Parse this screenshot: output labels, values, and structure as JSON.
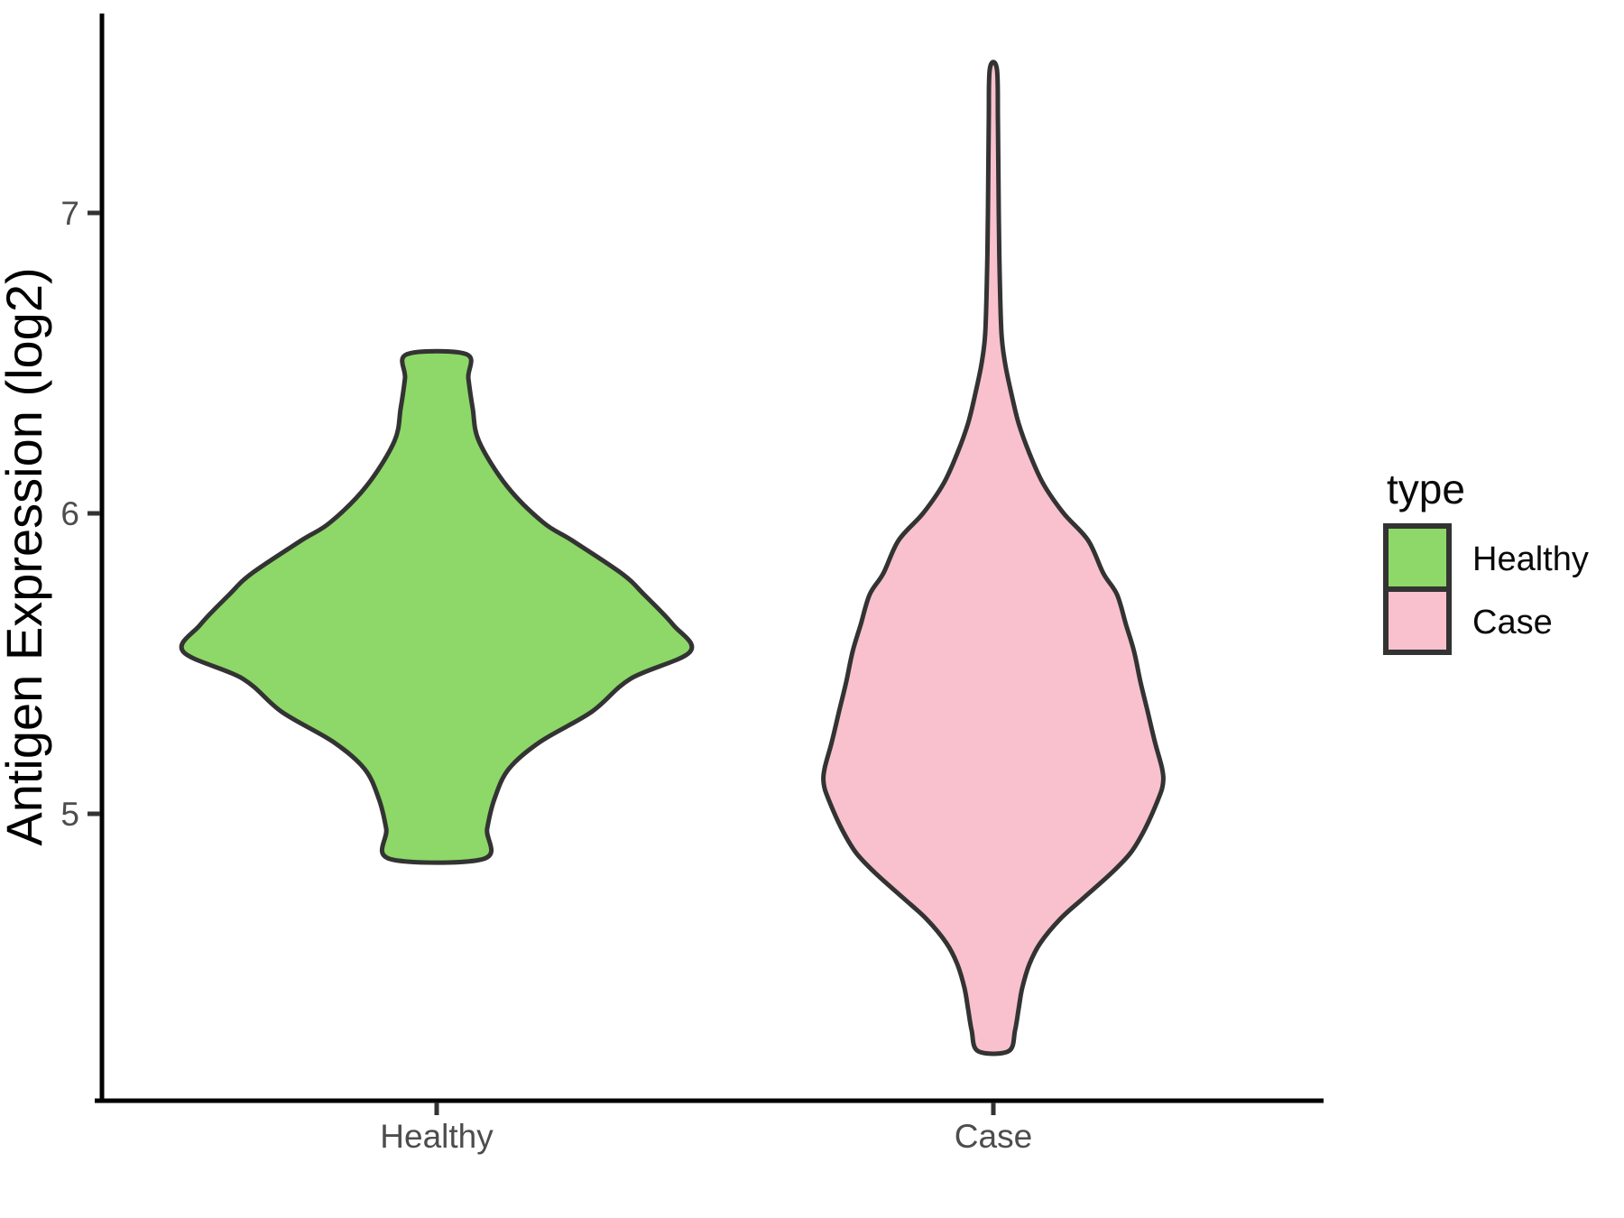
{
  "chart_data": {
    "type": "violin",
    "title": "",
    "xlabel": "",
    "ylabel": "Antigen Expression (log2)",
    "categories": [
      "Healthy",
      "Case"
    ],
    "ytick_values": [
      7,
      6,
      5
    ],
    "ytick_labels": [
      "7",
      "6",
      "5"
    ],
    "ylim": [
      4.045,
      7.664
    ],
    "grid": "off",
    "background": "#ffffff",
    "axis_color": "#000000",
    "tick_color": "#333333",
    "outline_color": "#333333",
    "legend": {
      "title": "type",
      "position": "right",
      "entries": [
        {
          "label": "Healthy",
          "color": "#8dd868"
        },
        {
          "label": "Case",
          "color": "#f8c1cd"
        }
      ]
    },
    "series": [
      {
        "name": "Healthy",
        "fill": "#8dd868",
        "outline": "#333333",
        "top_value": 6.53,
        "bottom_value": 4.85,
        "widest_at_value": 5.54,
        "profile": [
          [
            6.53,
            0.117
          ],
          [
            6.45,
            0.125
          ],
          [
            6.35,
            0.142
          ],
          [
            6.24,
            0.167
          ],
          [
            6.09,
            0.278
          ],
          [
            5.97,
            0.42
          ],
          [
            5.91,
            0.534
          ],
          [
            5.8,
            0.73
          ],
          [
            5.73,
            0.818
          ],
          [
            5.63,
            0.932
          ],
          [
            5.54,
            1.0
          ],
          [
            5.45,
            0.765
          ],
          [
            5.34,
            0.612
          ],
          [
            5.24,
            0.409
          ],
          [
            5.15,
            0.285
          ],
          [
            5.05,
            0.228
          ],
          [
            4.95,
            0.199
          ],
          [
            4.85,
            0.185
          ]
        ]
      },
      {
        "name": "Case",
        "fill": "#f8c1cd",
        "outline": "#333333",
        "top_value": 7.48,
        "bottom_value": 4.21,
        "widest_at_value": 5.1,
        "profile": [
          [
            7.48,
            0.021
          ],
          [
            7.3,
            0.027
          ],
          [
            7.0,
            0.032
          ],
          [
            6.8,
            0.037
          ],
          [
            6.6,
            0.048
          ],
          [
            6.5,
            0.069
          ],
          [
            6.4,
            0.106
          ],
          [
            6.3,
            0.149
          ],
          [
            6.2,
            0.213
          ],
          [
            6.1,
            0.293
          ],
          [
            6.0,
            0.415
          ],
          [
            5.91,
            0.559
          ],
          [
            5.8,
            0.649
          ],
          [
            5.73,
            0.729
          ],
          [
            5.63,
            0.782
          ],
          [
            5.54,
            0.83
          ],
          [
            5.44,
            0.867
          ],
          [
            5.34,
            0.91
          ],
          [
            5.24,
            0.952
          ],
          [
            5.15,
            0.995
          ],
          [
            5.1,
            1.0
          ],
          [
            5.05,
            0.973
          ],
          [
            4.95,
            0.894
          ],
          [
            4.87,
            0.809
          ],
          [
            4.8,
            0.691
          ],
          [
            4.72,
            0.532
          ],
          [
            4.65,
            0.394
          ],
          [
            4.57,
            0.277
          ],
          [
            4.5,
            0.213
          ],
          [
            4.42,
            0.17
          ],
          [
            4.35,
            0.149
          ],
          [
            4.28,
            0.128
          ],
          [
            4.21,
            0.09
          ]
        ]
      }
    ]
  }
}
